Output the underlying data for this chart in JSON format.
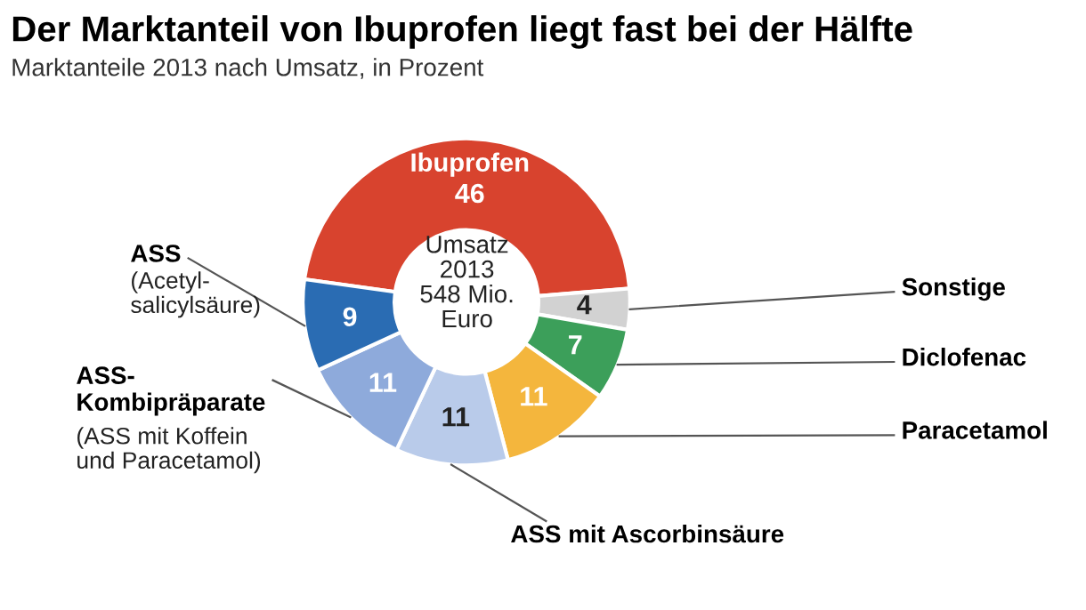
{
  "chart_data": {
    "type": "donut",
    "title": "Der Marktanteil von Ibuprofen liegt fast bei der Hälfte",
    "subtitle": "Marktanteile 2013 nach Umsatz, in Prozent",
    "categories": [
      "Ibuprofen",
      "Sonstige",
      "Diclofenac",
      "Paracetamol",
      "ASS mit Ascorbinsäure",
      "ASS-\nKombipräparate",
      "ASS"
    ],
    "values": [
      46,
      4,
      7,
      11,
      11,
      11,
      9
    ],
    "colors": [
      "#d8432e",
      "#d2d2d2",
      "#3c9f5a",
      "#f4b63d",
      "#b9cbea",
      "#8eaadb",
      "#2a6cb3"
    ],
    "data_labels": true,
    "annotations": [
      "Umsatz\n2013\n548 Mio.\nEuro",
      "(Acetyl-\nsalicylsäure)",
      "(ASS mit Koffein\nund Paracetamol)"
    ]
  }
}
